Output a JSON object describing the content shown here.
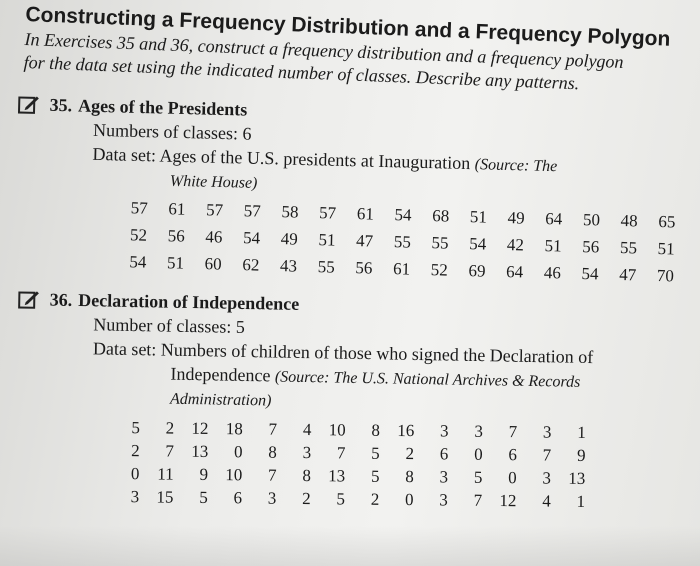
{
  "section": {
    "title": "Constructing a Frequency Distribution and a Frequency Polygon",
    "instructions_line1": "In Exercises 35 and 36, construct a frequency distribution and a frequency polygon",
    "instructions_line2": "for the data set using the indicated number of classes. Describe any patterns."
  },
  "exercises": [
    {
      "number": "35.",
      "title": "Ages of the Presidents",
      "classes": "Numbers of classes: 6",
      "dataset_label": "Data set: Ages of the U.S. presidents at Inauguration",
      "source_line1": "(Source: The",
      "source_line2": "White House)",
      "icon": "edit-pencil-icon",
      "data": [
        [
          "57",
          "61",
          "57",
          "57",
          "58",
          "57",
          "61",
          "54",
          "68",
          "51",
          "49",
          "64",
          "50",
          "48",
          "65"
        ],
        [
          "52",
          "56",
          "46",
          "54",
          "49",
          "51",
          "47",
          "55",
          "55",
          "54",
          "42",
          "51",
          "56",
          "55",
          "51"
        ],
        [
          "54",
          "51",
          "60",
          "62",
          "43",
          "55",
          "56",
          "61",
          "52",
          "69",
          "64",
          "46",
          "54",
          "47",
          "70"
        ]
      ]
    },
    {
      "number": "36.",
      "title": "Declaration of Independence",
      "classes": "Number of classes: 5",
      "dataset_label": "Data set: Numbers of children of those who signed the Declaration of",
      "dataset_label2": "Independence",
      "source_line1": "(Source: The U.S. National Archives & Records",
      "source_line2": "Administration)",
      "icon": "edit-pencil-icon",
      "data": [
        [
          "5",
          "2",
          "12",
          "18",
          "7",
          "4",
          "10",
          "8",
          "16",
          "3",
          "3",
          "7",
          "3",
          "1"
        ],
        [
          "2",
          "7",
          "13",
          "0",
          "8",
          "3",
          "7",
          "5",
          "2",
          "6",
          "0",
          "6",
          "7",
          "9"
        ],
        [
          "0",
          "11",
          "9",
          "10",
          "7",
          "8",
          "13",
          "5",
          "8",
          "3",
          "5",
          "0",
          "3",
          "13"
        ],
        [
          "3",
          "15",
          "5",
          "6",
          "3",
          "2",
          "5",
          "2",
          "0",
          "3",
          "7",
          "12",
          "4",
          "1"
        ]
      ]
    }
  ]
}
